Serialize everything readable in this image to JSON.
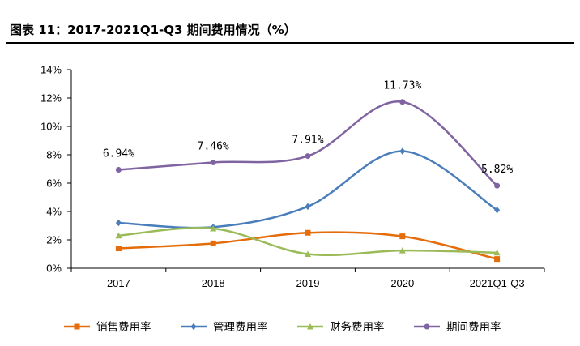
{
  "title": "图表 11：2017-2021Q1-Q3 期间费用情况（%）",
  "chart_data": {
    "type": "line",
    "categories": [
      "2017",
      "2018",
      "2019",
      "2020",
      "2021Q1-Q3"
    ],
    "y_ticks": [
      "0%",
      "2%",
      "4%",
      "6%",
      "8%",
      "10%",
      "12%",
      "14%"
    ],
    "ylim": [
      0,
      14
    ],
    "grid": false,
    "legend_position": "bottom",
    "smooth": true,
    "series": [
      {
        "name": "销售费用率",
        "color": "#E46C0A",
        "marker": "square",
        "values": [
          1.4,
          1.75,
          2.5,
          2.25,
          0.65
        ]
      },
      {
        "name": "管理费用率",
        "color": "#4A7EBB",
        "marker": "diamond",
        "values": [
          3.2,
          2.9,
          4.35,
          8.25,
          4.1
        ]
      },
      {
        "name": "财务费用率",
        "color": "#9BBB59",
        "marker": "triangle",
        "values": [
          2.3,
          2.8,
          1.0,
          1.25,
          1.1
        ]
      },
      {
        "name": "期间费用率",
        "color": "#8064A2",
        "marker": "circle",
        "values": [
          6.94,
          7.46,
          7.91,
          11.73,
          5.82
        ],
        "data_labels": [
          "6.94%",
          "7.46%",
          "7.91%",
          "11.73%",
          "5.82%"
        ]
      }
    ]
  }
}
